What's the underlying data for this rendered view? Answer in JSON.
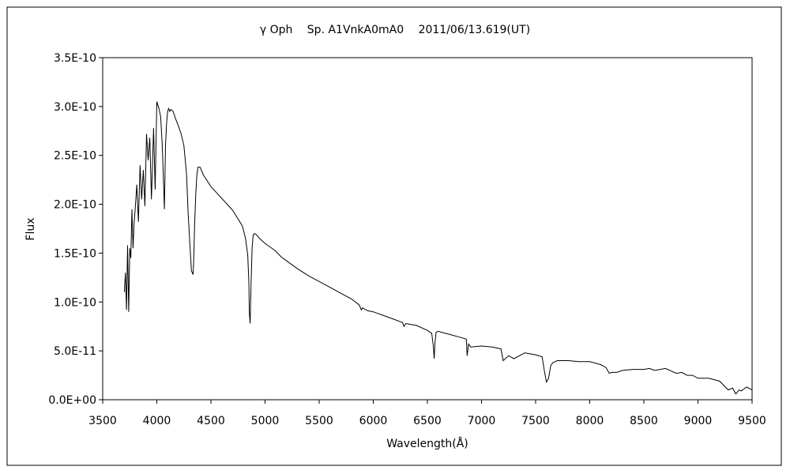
{
  "chart_data": {
    "type": "line",
    "title": "γ Oph　 Sp. A1VnkA0mA0　 2011/06/13.619(UT)",
    "xlabel": "Wavelength(Å)",
    "ylabel": "Flux",
    "xlim": [
      3500,
      9500
    ],
    "ylim": [
      0,
      3.5e-10
    ],
    "xticks": [
      3500,
      4000,
      4500,
      5000,
      5500,
      6000,
      6500,
      7000,
      7500,
      8000,
      8500,
      9000,
      9500
    ],
    "xtick_labels": [
      "3500",
      "4000",
      "4500",
      "5000",
      "5500",
      "6000",
      "6500",
      "7000",
      "7500",
      "8000",
      "8500",
      "9000",
      "9500"
    ],
    "yticks": [
      0,
      5e-11,
      1e-10,
      1.5e-10,
      2e-10,
      2.5e-10,
      3e-10,
      3.5e-10
    ],
    "ytick_labels": [
      "0.0E+00",
      "5.0E-11",
      "1.0E-10",
      "1.5E-10",
      "2.0E-10",
      "2.5E-10",
      "3.0E-10",
      "3.5E-10"
    ],
    "grid": false,
    "legend": "none",
    "line_color": "#000000",
    "series": [
      {
        "x": [
          3700,
          3710,
          3720,
          3730,
          3740,
          3750,
          3760,
          3770,
          3780,
          3790,
          3800,
          3815,
          3830,
          3845,
          3860,
          3875,
          3890,
          3905,
          3920,
          3935,
          3950,
          3970,
          3985,
          4000,
          4020,
          4035,
          4050,
          4060,
          4070,
          4080,
          4090,
          4100,
          4110,
          4120,
          4130,
          4150,
          4175,
          4200,
          4225,
          4250,
          4275,
          4290,
          4305,
          4320,
          4335,
          4340,
          4350,
          4360,
          4370,
          4380,
          4400,
          4430,
          4460,
          4500,
          4550,
          4600,
          4650,
          4700,
          4750,
          4790,
          4820,
          4840,
          4850,
          4855,
          4862,
          4870,
          4880,
          4890,
          4900,
          4920,
          4950,
          5000,
          5050,
          5100,
          5150,
          5200,
          5300,
          5400,
          5500,
          5600,
          5700,
          5800,
          5870,
          5890,
          5900,
          5950,
          6000,
          6100,
          6200,
          6270,
          6284,
          6300,
          6400,
          6500,
          6540,
          6555,
          6563,
          6570,
          6580,
          6600,
          6700,
          6800,
          6860,
          6867,
          6880,
          6900,
          7000,
          7100,
          7180,
          7200,
          7250,
          7300,
          7400,
          7500,
          7560,
          7580,
          7600,
          7620,
          7640,
          7660,
          7700,
          7800,
          7900,
          8000,
          8100,
          8150,
          8180,
          8200,
          8250,
          8300,
          8400,
          8500,
          8550,
          8600,
          8700,
          8800,
          8850,
          8900,
          8950,
          9000,
          9100,
          9200,
          9280,
          9320,
          9350,
          9380,
          9400,
          9450,
          9500
        ],
        "y": [
          1.1e-10,
          1.3e-10,
          9.2e-11,
          1.58e-10,
          9e-11,
          1.55e-10,
          1.45e-10,
          1.95e-10,
          1.55e-10,
          1.8e-10,
          1.95e-10,
          2.2e-10,
          1.82e-10,
          2.4e-10,
          2.05e-10,
          2.35e-10,
          1.98e-10,
          2.72e-10,
          2.45e-10,
          2.68e-10,
          2.05e-10,
          2.78e-10,
          2.15e-10,
          3.05e-10,
          2.98e-10,
          2.9e-10,
          2.62e-10,
          2.3e-10,
          1.95e-10,
          2.6e-10,
          2.82e-10,
          2.95e-10,
          2.98e-10,
          2.95e-10,
          2.97e-10,
          2.95e-10,
          2.87e-10,
          2.8e-10,
          2.72e-10,
          2.6e-10,
          2.3e-10,
          1.9e-10,
          1.6e-10,
          1.32e-10,
          1.28e-10,
          1.4e-10,
          1.8e-10,
          2.1e-10,
          2.3e-10,
          2.38e-10,
          2.38e-10,
          2.3e-10,
          2.25e-10,
          2.18e-10,
          2.12e-10,
          2.06e-10,
          2e-10,
          1.94e-10,
          1.85e-10,
          1.78e-10,
          1.65e-10,
          1.48e-10,
          1.2e-10,
          9e-11,
          7.8e-11,
          1.15e-10,
          1.55e-10,
          1.68e-10,
          1.7e-10,
          1.69e-10,
          1.65e-10,
          1.6e-10,
          1.56e-10,
          1.52e-10,
          1.46e-10,
          1.42e-10,
          1.34e-10,
          1.27e-10,
          1.21e-10,
          1.15e-10,
          1.09e-10,
          1.03e-10,
          9.7e-11,
          9.2e-11,
          9.4e-11,
          9.1e-11,
          9e-11,
          8.6e-11,
          8.2e-11,
          7.9e-11,
          7.5e-11,
          7.8e-11,
          7.6e-11,
          7.1e-11,
          6.8e-11,
          5.5e-11,
          4.2e-11,
          5.8e-11,
          6.9e-11,
          7e-11,
          6.7e-11,
          6.4e-11,
          6.2e-11,
          4.5e-11,
          5.7e-11,
          5.4e-11,
          5.5e-11,
          5.4e-11,
          5.2e-11,
          4e-11,
          4.5e-11,
          4.2e-11,
          4.8e-11,
          4.6e-11,
          4.4e-11,
          3e-11,
          1.8e-11,
          2.2e-11,
          3.5e-11,
          3.8e-11,
          4e-11,
          4e-11,
          3.9e-11,
          3.9e-11,
          3.6e-11,
          3.3e-11,
          2.7e-11,
          2.8e-11,
          2.8e-11,
          3e-11,
          3.1e-11,
          3.1e-11,
          3.2e-11,
          3e-11,
          3.2e-11,
          2.7e-11,
          2.8e-11,
          2.5e-11,
          2.5e-11,
          2.2e-11,
          2.2e-11,
          1.9e-11,
          1e-11,
          1.2e-11,
          6e-12,
          1e-11,
          9e-12,
          1.3e-11,
          1e-11
        ]
      }
    ]
  }
}
